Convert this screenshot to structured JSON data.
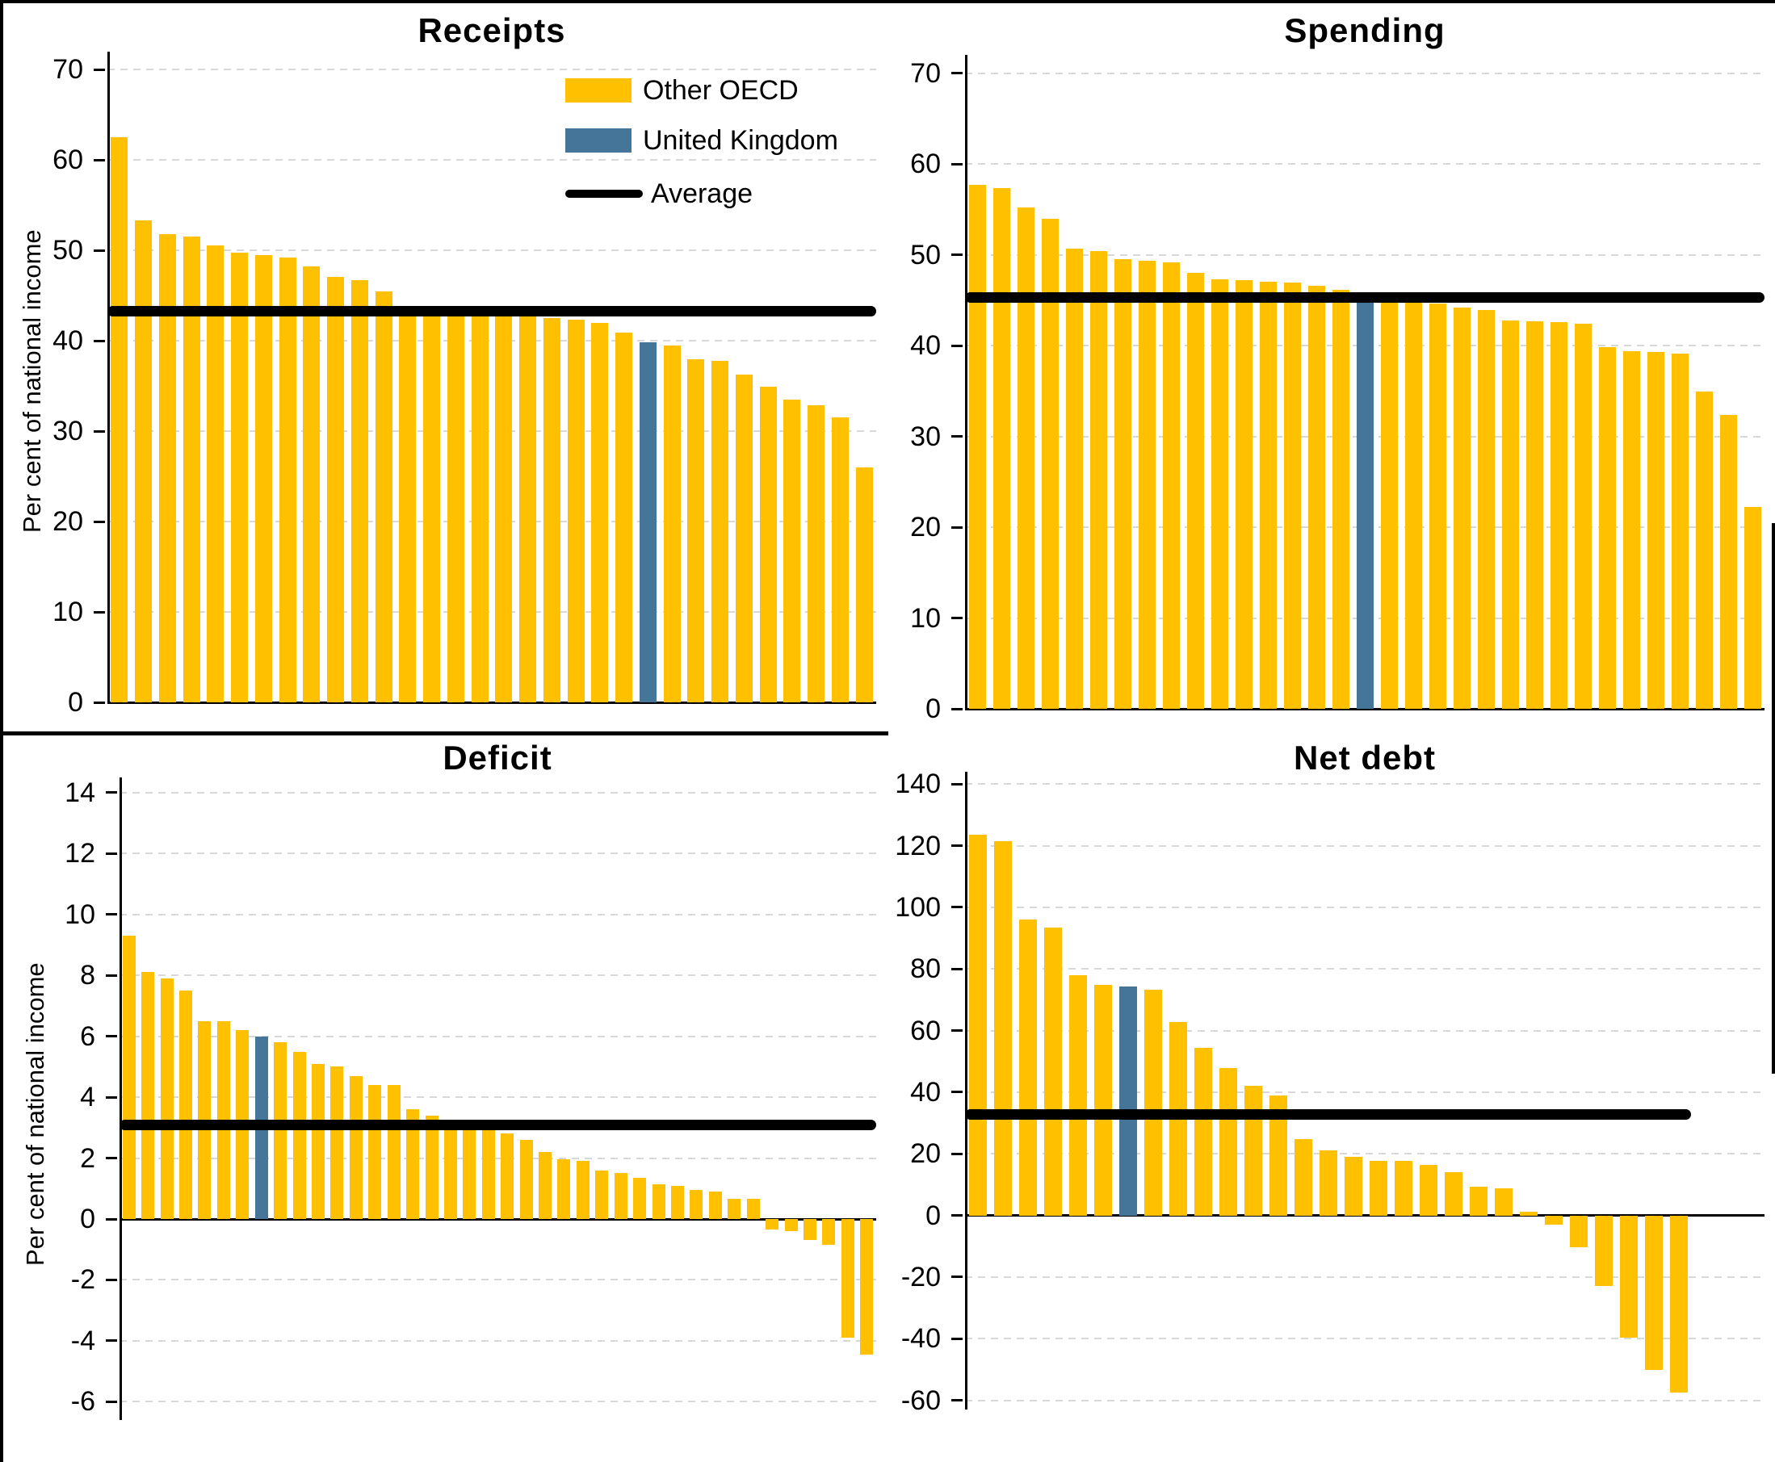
{
  "colors": {
    "other_oecd": "#FFC000",
    "united_kingdom": "#46759A",
    "average": "#000000",
    "gridline": "#D8D8D8",
    "background": "#FFFFFF"
  },
  "legend": {
    "other_oecd": "Other OECD",
    "united_kingdom": "United Kingdom",
    "average": "Average"
  },
  "chart_data": [
    {
      "id": "receipts",
      "type": "bar",
      "title": "Receipts",
      "ylabel": "Per cent of national income",
      "ylim": [
        0,
        72
      ],
      "yticks": [
        0,
        10,
        20,
        30,
        40,
        50,
        60,
        70
      ],
      "grid": "horizontal-dashed",
      "legend_position": "inside-top-right",
      "average": 43.3,
      "uk_index": 22,
      "values": [
        62.5,
        53.3,
        51.8,
        51.5,
        50.6,
        49.8,
        49.5,
        49.2,
        48.2,
        47.1,
        46.7,
        45.5,
        43.8,
        43.2,
        43.1,
        43.0,
        42.9,
        42.7,
        42.5,
        42.3,
        42.0,
        40.9,
        39.8,
        39.5,
        38.0,
        37.8,
        36.3,
        34.9,
        33.5,
        32.9,
        31.5,
        26.0
      ]
    },
    {
      "id": "spending",
      "type": "bar",
      "title": "Spending",
      "ylabel": "",
      "ylim": [
        0,
        72
      ],
      "yticks": [
        0,
        10,
        20,
        30,
        40,
        50,
        60,
        70
      ],
      "grid": "horizontal-dashed",
      "average": 45.3,
      "uk_index": 16,
      "values": [
        57.7,
        57.3,
        55.2,
        54.0,
        50.7,
        50.4,
        49.5,
        49.3,
        49.2,
        48.0,
        47.3,
        47.2,
        47.0,
        46.9,
        46.6,
        46.1,
        45.9,
        45.2,
        45.0,
        44.6,
        44.2,
        43.9,
        42.8,
        42.7,
        42.6,
        42.4,
        39.8,
        39.4,
        39.3,
        39.1,
        34.9,
        32.4,
        22.2
      ]
    },
    {
      "id": "deficit",
      "type": "bar",
      "title": "Deficit",
      "ylabel": "Per cent of national income",
      "ylim": [
        -6.6,
        14.5
      ],
      "yticks": [
        -6,
        -4,
        -2,
        0,
        2,
        4,
        6,
        8,
        10,
        12,
        14
      ],
      "grid": "horizontal-dashed",
      "average": 3.1,
      "uk_index": 7,
      "values": [
        9.3,
        8.1,
        7.9,
        7.5,
        6.5,
        6.5,
        6.2,
        6.0,
        5.8,
        5.5,
        5.1,
        5.0,
        4.7,
        4.4,
        4.4,
        3.6,
        3.4,
        3.2,
        3.1,
        3.0,
        2.8,
        2.6,
        2.2,
        1.95,
        1.9,
        1.6,
        1.5,
        1.35,
        1.15,
        1.1,
        0.95,
        0.9,
        0.65,
        0.65,
        -0.35,
        -0.4,
        -0.7,
        -0.85,
        -3.9,
        -4.45
      ]
    },
    {
      "id": "netdebt",
      "type": "bar",
      "title": "Net debt",
      "ylabel": "",
      "ylim": [
        -63,
        144
      ],
      "yticks": [
        -60,
        -40,
        -20,
        0,
        20,
        40,
        60,
        80,
        100,
        120,
        140
      ],
      "grid": "horizontal-dashed",
      "average": 32.8,
      "uk_index": 6,
      "values": [
        123.5,
        121.5,
        96.0,
        93.5,
        78.0,
        74.8,
        74.3,
        73.2,
        62.7,
        54.4,
        47.9,
        42.2,
        38.9,
        24.7,
        21.2,
        18.9,
        17.8,
        17.8,
        16.4,
        14.1,
        9.4,
        8.9,
        1.2,
        -3.1,
        -10.4,
        -23.0,
        -39.8,
        -50.1,
        -57.5
      ]
    }
  ]
}
